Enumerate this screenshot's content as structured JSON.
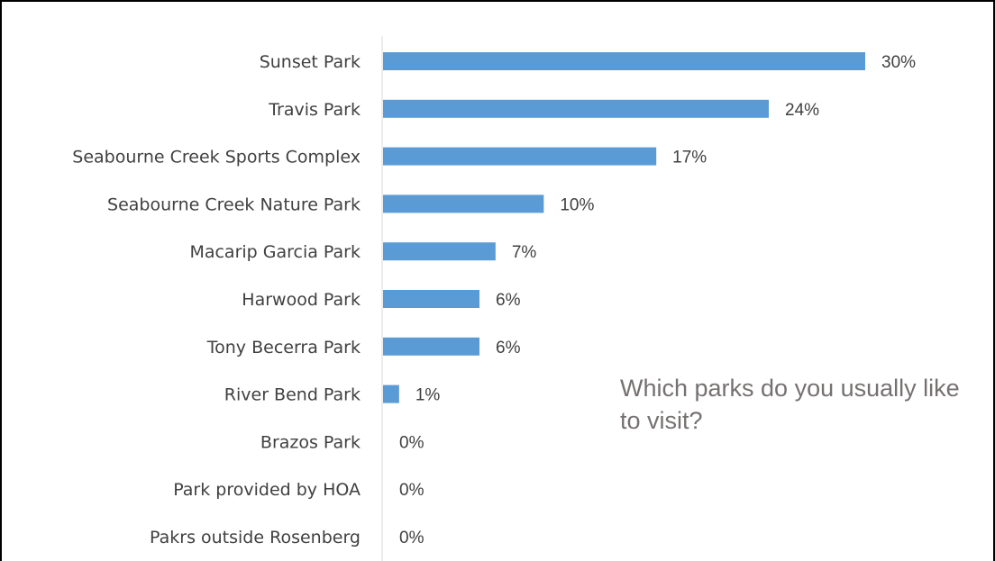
{
  "chart_data": {
    "type": "bar",
    "orientation": "horizontal",
    "title": "Which parks do you usually like to visit?",
    "categories": [
      "Sunset Park",
      "Travis Park",
      "Seabourne Creek Sports Complex",
      "Seabourne Creek Nature Park",
      "Macarip Garcia Park",
      "Harwood Park",
      "Tony Becerra Park",
      "River Bend Park",
      "Brazos Park",
      "Park provided by HOA",
      "Pakrs outside Rosenberg"
    ],
    "values": [
      30,
      24,
      17,
      10,
      7,
      6,
      6,
      1,
      0,
      0,
      0
    ],
    "value_labels": [
      "30%",
      "24%",
      "17%",
      "10%",
      "7%",
      "6%",
      "6%",
      "1%",
      "0%",
      "0%",
      "0%"
    ],
    "xlim": [
      0,
      30
    ],
    "grid": false,
    "bar_color": "#5b9bd5",
    "axis_color": "#d9d9d9",
    "text_color": "#404040",
    "title_color": "#767171"
  }
}
